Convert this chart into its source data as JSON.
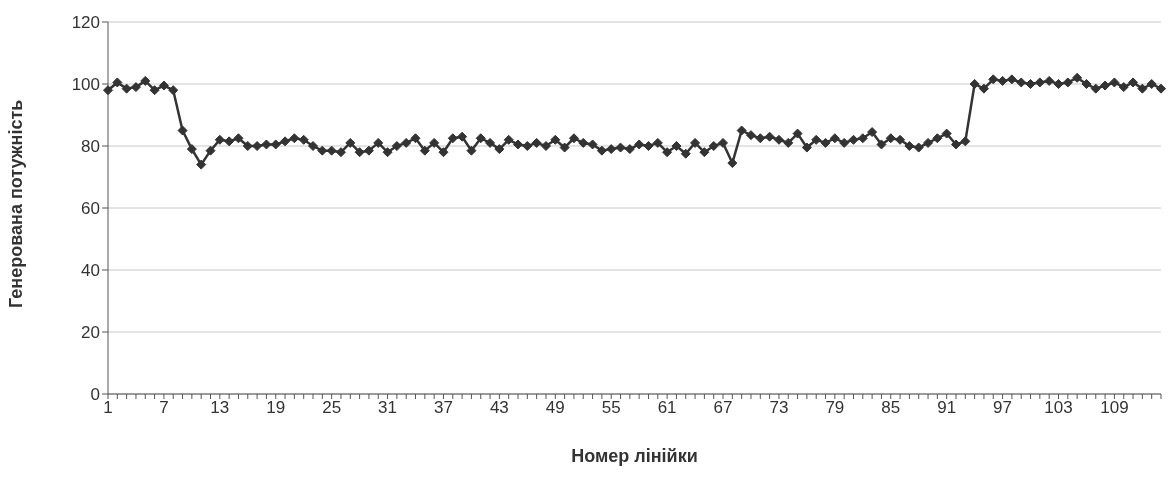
{
  "chart_data": {
    "type": "line",
    "xlabel": "Номер лінійки",
    "ylabel": "Генерована потужність",
    "categories": [
      "1",
      null,
      null,
      null,
      null,
      null,
      "7",
      null,
      null,
      null,
      null,
      null,
      "13",
      null,
      null,
      null,
      null,
      null,
      "19",
      null,
      null,
      null,
      null,
      null,
      "25",
      null,
      null,
      null,
      null,
      null,
      "31",
      null,
      null,
      null,
      null,
      null,
      "37",
      null,
      null,
      null,
      null,
      null,
      "43",
      null,
      null,
      null,
      null,
      null,
      "49",
      null,
      null,
      null,
      null,
      null,
      "55",
      null,
      null,
      null,
      null,
      null,
      "61",
      null,
      null,
      null,
      null,
      null,
      "67",
      null,
      null,
      null,
      null,
      null,
      "73",
      null,
      null,
      null,
      null,
      null,
      "79",
      null,
      null,
      null,
      null,
      null,
      "85",
      null,
      null,
      null,
      null,
      null,
      "91",
      null,
      null,
      null,
      null,
      null,
      "97",
      null,
      null,
      null,
      null,
      null,
      "103",
      null,
      null,
      null,
      null,
      null,
      "109",
      null,
      null,
      null,
      null,
      null
    ],
    "series": [
      {
        "color": "#333333",
        "values": [
          98,
          100.5,
          98.5,
          99,
          101,
          98,
          99.5,
          98,
          85,
          79,
          74,
          78.5,
          82,
          81.5,
          82.5,
          80,
          80,
          80.5,
          80.5,
          81.5,
          82.5,
          82,
          80,
          78.5,
          78.5,
          78,
          81,
          78,
          78.5,
          81,
          78,
          80,
          81,
          82.5,
          78.5,
          81,
          78,
          82.5,
          83,
          78.5,
          82.5,
          81,
          79,
          82,
          80.5,
          80,
          81,
          80,
          82,
          79.5,
          82.5,
          81,
          80.5,
          78.5,
          79,
          79.5,
          79,
          80.5,
          80,
          81,
          78,
          80,
          77.5,
          81,
          78,
          80,
          81,
          74.5,
          85,
          83.5,
          82.5,
          83,
          82,
          81,
          84,
          79.5,
          82,
          81,
          82.5,
          81,
          82,
          82.5,
          84.5,
          80.5,
          82.5,
          82,
          80,
          79.5,
          81,
          82.5,
          84,
          80.5,
          81.5,
          100,
          98.5,
          101.5,
          101,
          101.5,
          100.5,
          100,
          100.5,
          101,
          100,
          100.5,
          102,
          100,
          98.5,
          99.5,
          100.5,
          99,
          100.5,
          98.5,
          100,
          98.5
        ]
      }
    ],
    "ylim": [
      0,
      120
    ],
    "yticks": [
      0,
      20,
      40,
      60,
      80,
      100,
      120
    ],
    "grid": "y",
    "marker": "diamond",
    "line_style": "solid"
  }
}
